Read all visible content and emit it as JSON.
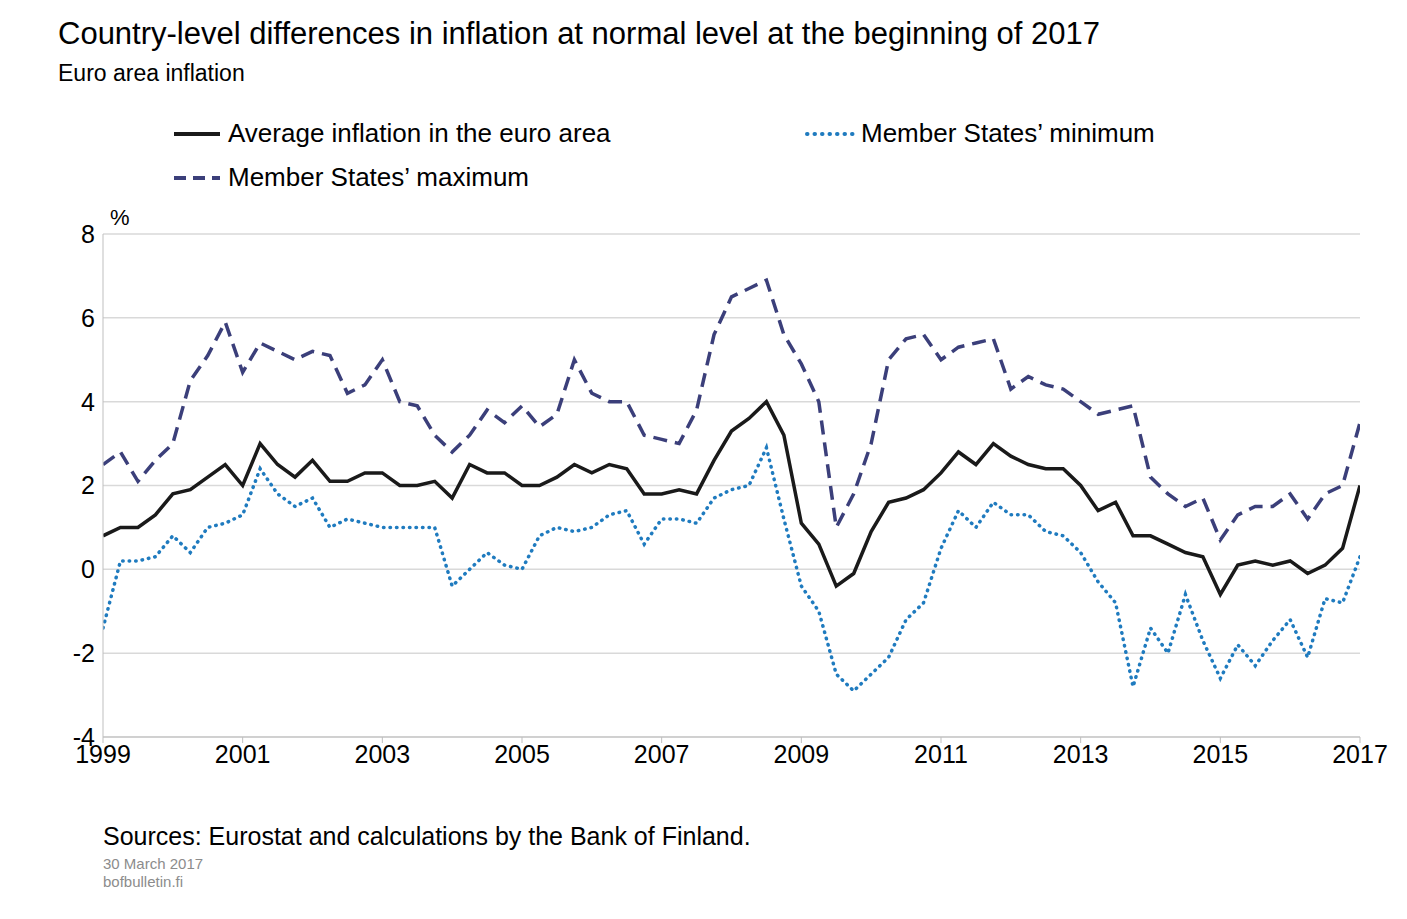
{
  "chart_data": {
    "type": "line",
    "title": "Country-level differences in inflation at normal level at the beginning of 2017",
    "subtitle": "Euro area inflation",
    "y_label": "%",
    "source": "Sources: Eurostat and calculations by the Bank of Finland.",
    "date_note": "30 March 2017",
    "website": "bofbulletin.fi",
    "legend": "top",
    "grid": true,
    "xlim": [
      1999,
      2017
    ],
    "xticks": [
      1999,
      2001,
      2003,
      2005,
      2007,
      2009,
      2011,
      2013,
      2015,
      2017
    ],
    "ylim": [
      -4,
      8
    ],
    "yticks": [
      -4,
      -2,
      0,
      2,
      4,
      6,
      8
    ],
    "x": [
      1999,
      1999.25,
      1999.5,
      1999.75,
      2000,
      2000.25,
      2000.5,
      2000.75,
      2001,
      2001.25,
      2001.5,
      2001.75,
      2002,
      2002.25,
      2002.5,
      2002.75,
      2003,
      2003.25,
      2003.5,
      2003.75,
      2004,
      2004.25,
      2004.5,
      2004.75,
      2005,
      2005.25,
      2005.5,
      2005.75,
      2006,
      2006.25,
      2006.5,
      2006.75,
      2007,
      2007.25,
      2007.5,
      2007.75,
      2008,
      2008.25,
      2008.5,
      2008.75,
      2009,
      2009.25,
      2009.5,
      2009.75,
      2010,
      2010.25,
      2010.5,
      2010.75,
      2011,
      2011.25,
      2011.5,
      2011.75,
      2012,
      2012.25,
      2012.5,
      2012.75,
      2013,
      2013.25,
      2013.5,
      2013.75,
      2014,
      2014.25,
      2014.5,
      2014.75,
      2015,
      2015.25,
      2015.5,
      2015.75,
      2016,
      2016.25,
      2016.5,
      2016.75,
      2017
    ],
    "series": [
      {
        "name": "Average inflation in the euro area",
        "color": "#1a1a1a",
        "line_style": "solid",
        "values": [
          0.8,
          1.0,
          1.0,
          1.3,
          1.8,
          1.9,
          2.2,
          2.5,
          2.0,
          3.0,
          2.5,
          2.2,
          2.6,
          2.1,
          2.1,
          2.3,
          2.3,
          2.0,
          2.0,
          2.1,
          1.7,
          2.5,
          2.3,
          2.3,
          2.0,
          2.0,
          2.2,
          2.5,
          2.3,
          2.5,
          2.4,
          1.8,
          1.8,
          1.9,
          1.8,
          2.6,
          3.3,
          3.6,
          4.0,
          3.2,
          1.1,
          0.6,
          -0.4,
          -0.1,
          0.9,
          1.6,
          1.7,
          1.9,
          2.3,
          2.8,
          2.5,
          3.0,
          2.7,
          2.5,
          2.4,
          2.4,
          2.0,
          1.4,
          1.6,
          0.8,
          0.8,
          0.6,
          0.4,
          0.3,
          -0.6,
          0.1,
          0.2,
          0.1,
          0.2,
          -0.1,
          0.1,
          0.5,
          2.0
        ]
      },
      {
        "name": "Member States’ minimum",
        "color": "#1f7bbf",
        "line_style": "dotted",
        "values": [
          -1.4,
          0.2,
          0.2,
          0.3,
          0.8,
          0.4,
          1.0,
          1.1,
          1.3,
          2.4,
          1.8,
          1.5,
          1.7,
          1.0,
          1.2,
          1.1,
          1.0,
          1.0,
          1.0,
          1.0,
          -0.4,
          0.0,
          0.4,
          0.1,
          0.0,
          0.8,
          1.0,
          0.9,
          1.0,
          1.3,
          1.4,
          0.6,
          1.2,
          1.2,
          1.1,
          1.7,
          1.9,
          2.0,
          2.9,
          1.2,
          -0.4,
          -1.0,
          -2.5,
          -2.9,
          -2.5,
          -2.1,
          -1.2,
          -0.8,
          0.5,
          1.4,
          1.0,
          1.6,
          1.3,
          1.3,
          0.9,
          0.8,
          0.4,
          -0.3,
          -0.8,
          -2.8,
          -1.4,
          -2.0,
          -0.6,
          -1.7,
          -2.6,
          -1.8,
          -2.3,
          -1.7,
          -1.2,
          -2.1,
          -0.7,
          -0.8,
          0.3
        ]
      },
      {
        "name": "Member States’ maximum",
        "color": "#3b3f7a",
        "line_style": "dashed",
        "values": [
          2.5,
          2.8,
          2.1,
          2.6,
          3.0,
          4.5,
          5.1,
          5.9,
          4.7,
          5.4,
          5.2,
          5.0,
          5.2,
          5.1,
          4.2,
          4.4,
          5.0,
          4.0,
          3.9,
          3.2,
          2.8,
          3.2,
          3.8,
          3.5,
          3.9,
          3.4,
          3.7,
          5.0,
          4.2,
          4.0,
          4.0,
          3.2,
          3.1,
          3.0,
          3.8,
          5.6,
          6.5,
          6.7,
          6.9,
          5.6,
          4.9,
          4.0,
          1.0,
          1.8,
          3.0,
          5.0,
          5.5,
          5.6,
          5.0,
          5.3,
          5.4,
          5.5,
          4.3,
          4.6,
          4.4,
          4.3,
          4.0,
          3.7,
          3.8,
          3.9,
          2.2,
          1.8,
          1.5,
          1.7,
          0.7,
          1.3,
          1.5,
          1.5,
          1.8,
          1.2,
          1.8,
          2.0,
          3.5
        ]
      }
    ]
  }
}
